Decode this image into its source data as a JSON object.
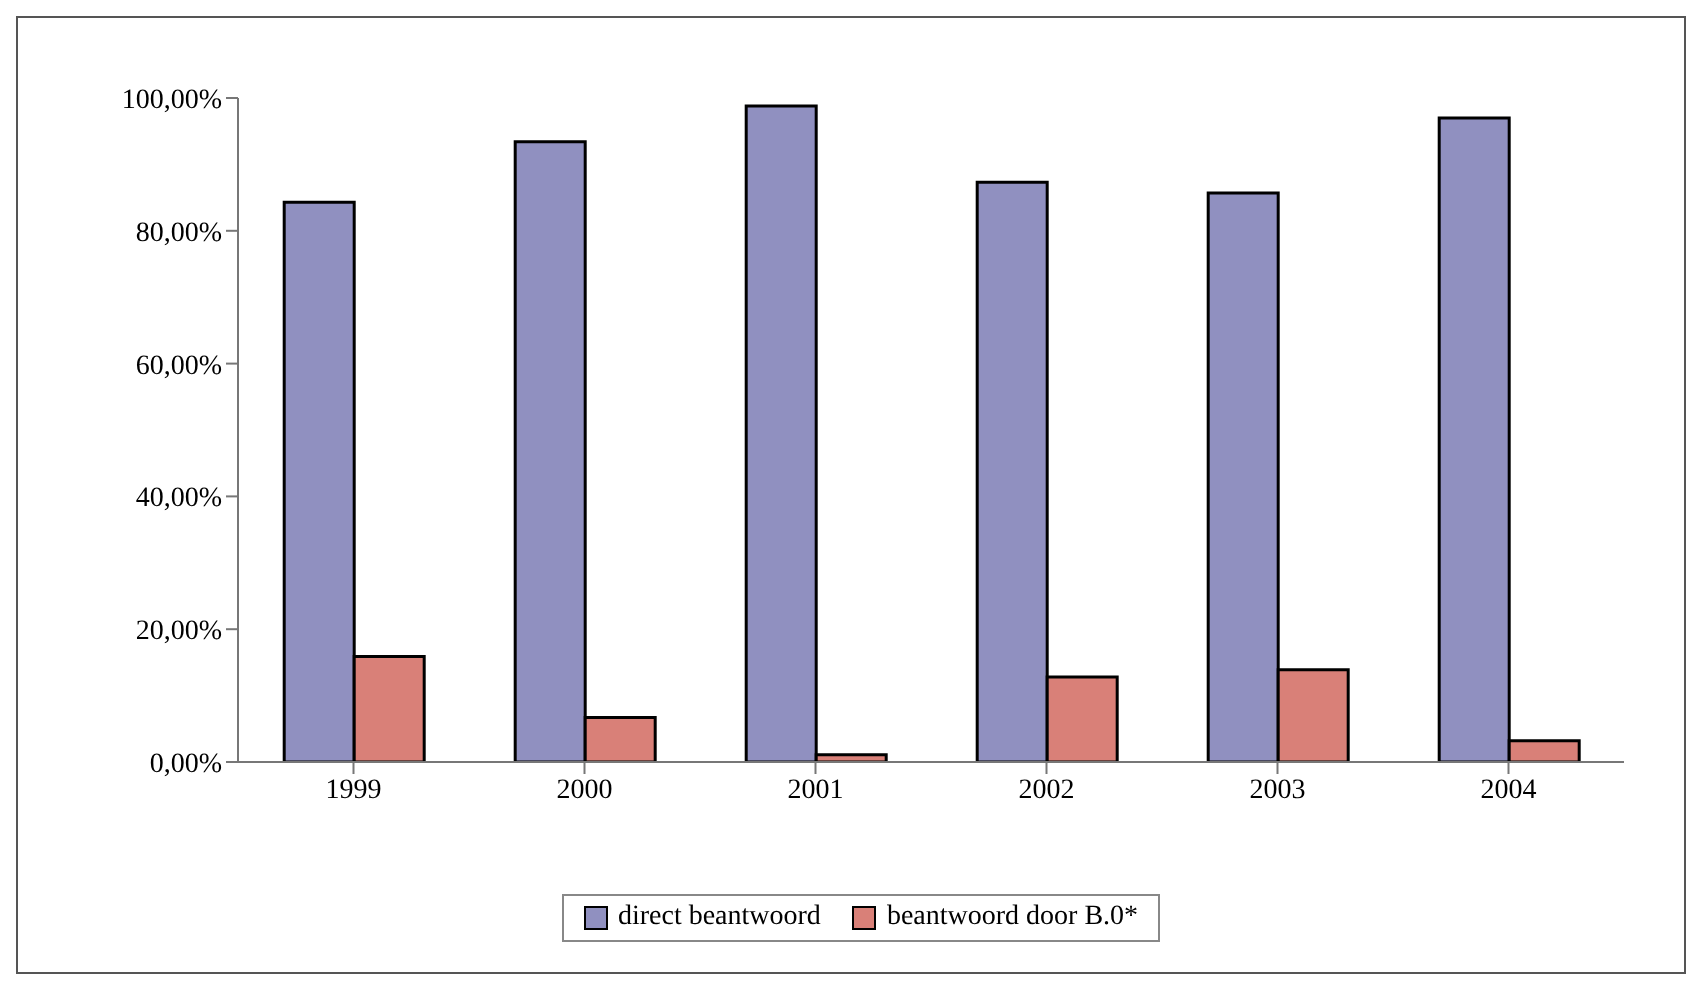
{
  "chart_data": {
    "type": "bar",
    "categories": [
      "1999",
      "2000",
      "2001",
      "2002",
      "2003",
      "2004"
    ],
    "series": [
      {
        "name": "direct beantwoord",
        "color": "#9090c0",
        "values": [
          84.3,
          93.4,
          98.8,
          87.3,
          85.7,
          97.0
        ]
      },
      {
        "name": "beantwoord door B.0*",
        "color": "#d98078",
        "values": [
          15.9,
          6.7,
          1.1,
          12.8,
          13.9,
          3.2
        ]
      }
    ],
    "ylim": [
      0,
      100
    ],
    "yticks": [
      {
        "value": 0,
        "label": "0,00%"
      },
      {
        "value": 20,
        "label": "20,00%"
      },
      {
        "value": 40,
        "label": "40,00%"
      },
      {
        "value": 60,
        "label": "60,00%"
      },
      {
        "value": 80,
        "label": "80,00%"
      },
      {
        "value": 100,
        "label": "100,00%"
      }
    ],
    "grid": false,
    "legend": "bottom"
  }
}
